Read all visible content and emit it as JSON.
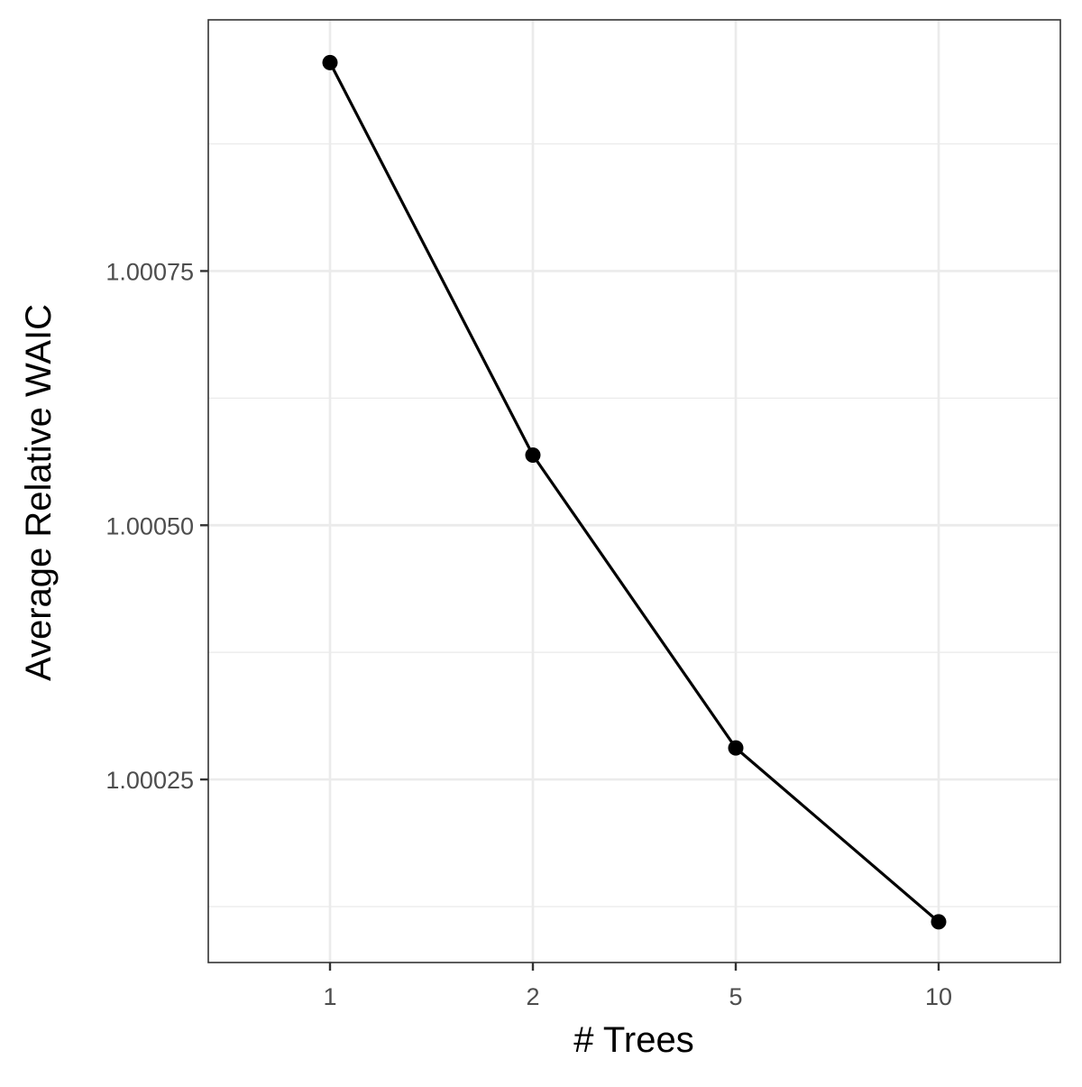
{
  "chart_data": {
    "type": "line",
    "xlabel": "# Trees",
    "ylabel": "Average Relative WAIC",
    "x_scale": "categorical",
    "categories": [
      "1",
      "2",
      "5",
      "10"
    ],
    "series": [
      {
        "values": [
          1.000955,
          1.000569,
          1.000281,
          1.00011
        ]
      }
    ],
    "ylim": [
      1.00007,
      1.000997
    ],
    "y_ticks": [
      1.00025,
      1.0005,
      1.00075
    ],
    "y_tick_labels": [
      "1.00025",
      "1.00050",
      "1.00075"
    ],
    "grid": true,
    "legend": "none",
    "theme": "bw",
    "colors": {
      "line": "#000000",
      "point": "#000000",
      "grid": "#ebebeb",
      "panel_border": "#333333",
      "tick_text": "#4d4d4d"
    }
  }
}
